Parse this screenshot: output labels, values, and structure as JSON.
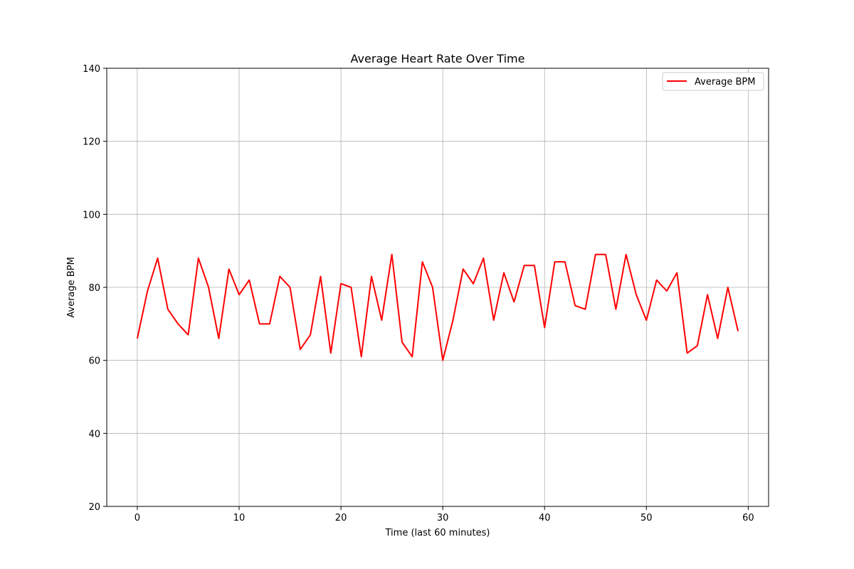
{
  "chart_data": {
    "type": "line",
    "title": "Average Heart Rate Over Time",
    "xlabel": "Time (last 60 minutes)",
    "ylabel": "Average BPM",
    "xlim": [
      -3,
      62
    ],
    "ylim": [
      20,
      140
    ],
    "xticks": [
      0,
      10,
      20,
      30,
      40,
      50,
      60
    ],
    "yticks": [
      20,
      40,
      60,
      80,
      100,
      120,
      140
    ],
    "grid": true,
    "legend_position": "top-right",
    "series": [
      {
        "name": "Average BPM",
        "color": "#ff0000",
        "x": [
          0,
          1,
          2,
          3,
          4,
          5,
          6,
          7,
          8,
          9,
          10,
          11,
          12,
          13,
          14,
          15,
          16,
          17,
          18,
          19,
          20,
          21,
          22,
          23,
          24,
          25,
          26,
          27,
          28,
          29,
          30,
          31,
          32,
          33,
          34,
          35,
          36,
          37,
          38,
          39,
          40,
          41,
          42,
          43,
          44,
          45,
          46,
          47,
          48,
          49,
          50,
          51,
          52,
          53,
          54,
          55,
          56,
          57,
          58,
          59
        ],
        "values": [
          66,
          79,
          88,
          74,
          70,
          67,
          88,
          80,
          66,
          85,
          78,
          82,
          70,
          70,
          83,
          80,
          63,
          67,
          83,
          62,
          81,
          80,
          61,
          83,
          71,
          89,
          65,
          61,
          87,
          80,
          60,
          71,
          85,
          81,
          88,
          71,
          84,
          76,
          86,
          86,
          69,
          87,
          87,
          75,
          74,
          89,
          89,
          74,
          89,
          78,
          71,
          82,
          79,
          84,
          62,
          64,
          78,
          66,
          80,
          68
        ]
      }
    ]
  }
}
